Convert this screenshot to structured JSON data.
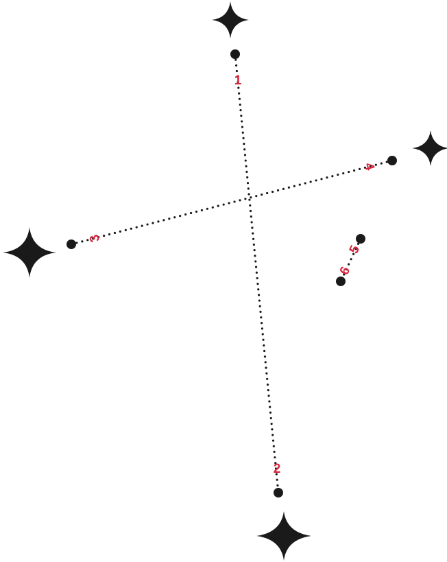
{
  "colors": {
    "ink": "#1a1a1a",
    "label": "#d7263d",
    "background": "#ffffff"
  },
  "labels": {
    "p1": "1",
    "p2": "2",
    "p3": "3",
    "p4": "4",
    "p5": "5",
    "p6": "6"
  },
  "icons": {
    "sparkle": "four-point-star-icon"
  }
}
